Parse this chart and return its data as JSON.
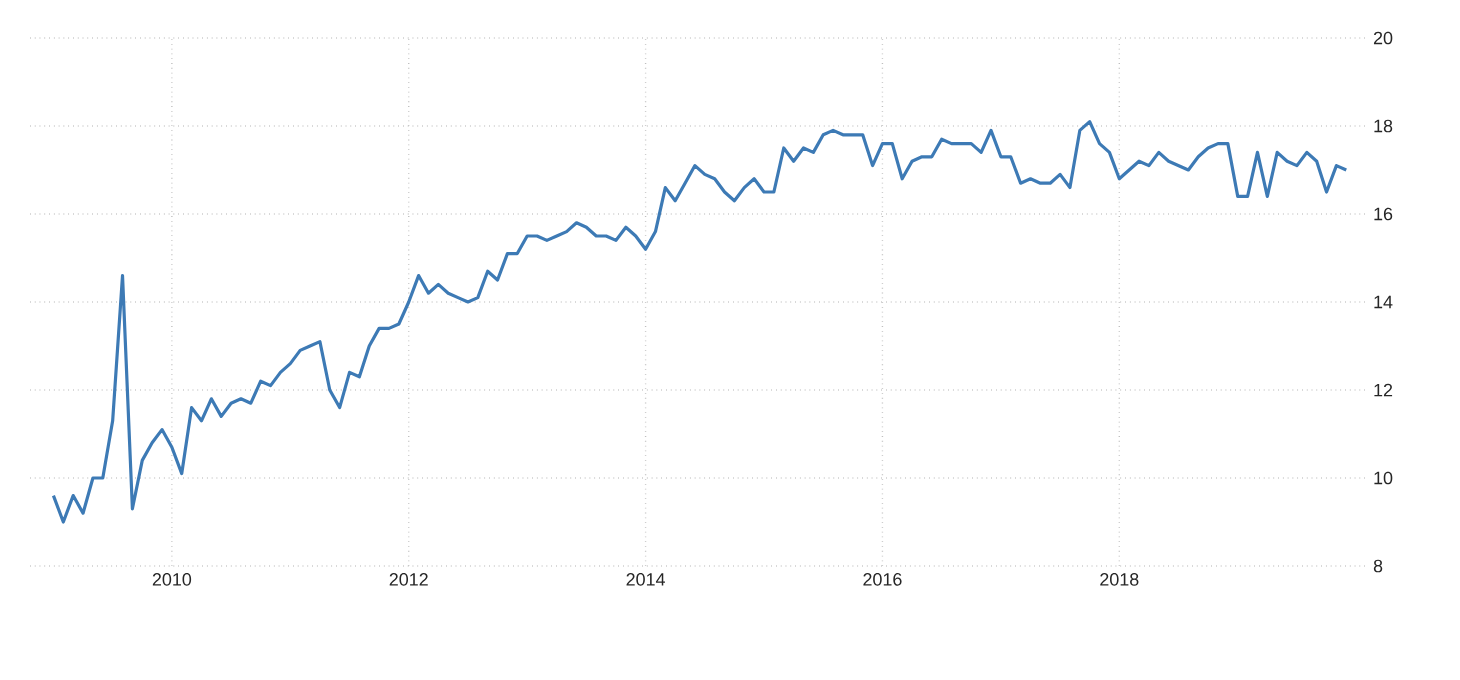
{
  "chart_data": {
    "type": "line",
    "x": [
      "2009-01",
      "2009-02",
      "2009-03",
      "2009-04",
      "2009-05",
      "2009-06",
      "2009-07",
      "2009-08",
      "2009-09",
      "2009-10",
      "2009-11",
      "2009-12",
      "2010-01",
      "2010-02",
      "2010-03",
      "2010-04",
      "2010-05",
      "2010-06",
      "2010-07",
      "2010-08",
      "2010-09",
      "2010-10",
      "2010-11",
      "2010-12",
      "2011-01",
      "2011-02",
      "2011-03",
      "2011-04",
      "2011-05",
      "2011-06",
      "2011-07",
      "2011-08",
      "2011-09",
      "2011-10",
      "2011-11",
      "2011-12",
      "2012-01",
      "2012-02",
      "2012-03",
      "2012-04",
      "2012-05",
      "2012-06",
      "2012-07",
      "2012-08",
      "2012-09",
      "2012-10",
      "2012-11",
      "2012-12",
      "2013-01",
      "2013-02",
      "2013-03",
      "2013-04",
      "2013-05",
      "2013-06",
      "2013-07",
      "2013-08",
      "2013-09",
      "2013-10",
      "2013-11",
      "2013-12",
      "2014-01",
      "2014-02",
      "2014-03",
      "2014-04",
      "2014-05",
      "2014-06",
      "2014-07",
      "2014-08",
      "2014-09",
      "2014-10",
      "2014-11",
      "2014-12",
      "2015-01",
      "2015-02",
      "2015-03",
      "2015-04",
      "2015-05",
      "2015-06",
      "2015-07",
      "2015-08",
      "2015-09",
      "2015-10",
      "2015-11",
      "2015-12",
      "2016-01",
      "2016-02",
      "2016-03",
      "2016-04",
      "2016-05",
      "2016-06",
      "2016-07",
      "2016-08",
      "2016-09",
      "2016-10",
      "2016-11",
      "2016-12",
      "2017-01",
      "2017-02",
      "2017-03",
      "2017-04",
      "2017-05",
      "2017-06",
      "2017-07",
      "2017-08",
      "2017-09",
      "2017-10",
      "2017-11",
      "2017-12",
      "2018-01",
      "2018-02",
      "2018-03",
      "2018-04",
      "2018-05",
      "2018-06",
      "2018-07",
      "2018-08",
      "2018-09",
      "2018-10",
      "2018-11",
      "2018-12",
      "2019-01",
      "2019-02",
      "2019-03",
      "2019-04",
      "2019-05",
      "2019-06",
      "2019-07",
      "2019-08",
      "2019-09",
      "2019-10",
      "2019-11",
      "2019-12"
    ],
    "series": [
      {
        "color": "#3d7ab5",
        "values": [
          9.6,
          9.0,
          9.6,
          9.2,
          10.0,
          10.0,
          11.3,
          14.6,
          9.3,
          10.4,
          10.8,
          11.1,
          10.7,
          10.1,
          11.6,
          11.3,
          11.8,
          11.4,
          11.7,
          11.8,
          11.7,
          12.2,
          12.1,
          12.4,
          12.6,
          12.9,
          13.0,
          13.1,
          12.0,
          11.6,
          12.4,
          12.3,
          13.0,
          13.4,
          13.4,
          13.5,
          14.0,
          14.6,
          14.2,
          14.4,
          14.2,
          14.1,
          14.0,
          14.1,
          14.7,
          14.5,
          15.1,
          15.1,
          15.5,
          15.5,
          15.4,
          15.5,
          15.6,
          15.8,
          15.7,
          15.5,
          15.5,
          15.4,
          15.7,
          15.5,
          15.2,
          15.6,
          16.6,
          16.3,
          16.7,
          17.1,
          16.9,
          16.8,
          16.5,
          16.3,
          16.6,
          16.8,
          16.5,
          16.5,
          17.5,
          17.2,
          17.5,
          17.4,
          17.8,
          17.9,
          17.8,
          17.8,
          17.8,
          17.1,
          17.6,
          17.6,
          16.8,
          17.2,
          17.3,
          17.3,
          17.7,
          17.6,
          17.6,
          17.6,
          17.4,
          17.9,
          17.3,
          17.3,
          16.7,
          16.8,
          16.7,
          16.7,
          16.9,
          16.6,
          17.9,
          18.1,
          17.6,
          17.4,
          16.8,
          17.0,
          17.2,
          17.1,
          17.4,
          17.2,
          17.1,
          17.0,
          17.3,
          17.5,
          17.6,
          17.6,
          16.4,
          16.4,
          17.4,
          16.4,
          17.4,
          17.2,
          17.1,
          17.4,
          17.2,
          16.5,
          17.1,
          17.0
        ]
      }
    ],
    "xlim": [
      "2008-10-20",
      "2020-02-01"
    ],
    "xticks": [
      "2010",
      "2012",
      "2014",
      "2016",
      "2018"
    ],
    "ylim": [
      8,
      20
    ],
    "yticks": [
      8,
      10,
      12,
      14,
      16,
      18,
      20
    ],
    "grid": true,
    "marker": "none",
    "line_style": "solid"
  }
}
